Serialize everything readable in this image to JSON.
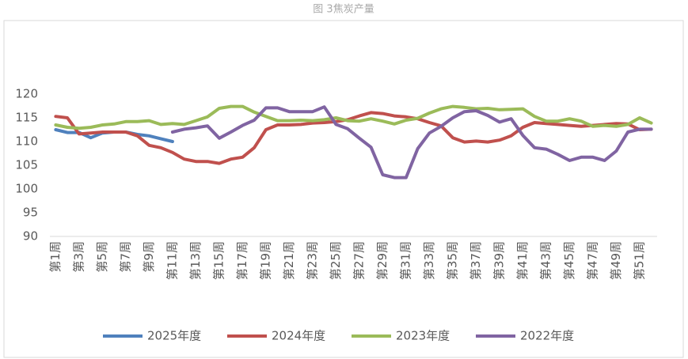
{
  "chart_data": {
    "type": "line",
    "title": "图 3焦炭产量",
    "categories": [
      "第1周",
      null,
      "第3周",
      null,
      "第5周",
      null,
      "第7周",
      null,
      "第9周",
      null,
      "第11周",
      null,
      "第13周",
      null,
      "第15周",
      null,
      "第17周",
      null,
      "第19周",
      null,
      "第21周",
      null,
      "第23周",
      null,
      "第25周",
      null,
      "第27周",
      null,
      "第29周",
      null,
      "第31周",
      null,
      "第33周",
      null,
      "第35周",
      null,
      "第37周",
      null,
      "第39周",
      null,
      "第41周",
      null,
      "第43周",
      null,
      "第45周",
      null,
      "第47周",
      null,
      "第49周",
      null,
      "第51周",
      null
    ],
    "series": [
      {
        "name": "2025年度",
        "color": "#4f81bd",
        "values": [
          112.5,
          111.9,
          111.9,
          110.8,
          111.8,
          112.0,
          112.0,
          111.5,
          111.2,
          110.6,
          110.0,
          null,
          null,
          null,
          null,
          null,
          null,
          null,
          null,
          null,
          null,
          null,
          null,
          null,
          null,
          null,
          null,
          null,
          null,
          null,
          null,
          null,
          null,
          null,
          null,
          null,
          null,
          null,
          null,
          null,
          null,
          null,
          null,
          null,
          null,
          null,
          null,
          null,
          null,
          null,
          null,
          null
        ]
      },
      {
        "name": "2024年度",
        "color": "#c0504d",
        "values": [
          115.3,
          115.0,
          111.6,
          111.8,
          112.0,
          112.0,
          112.0,
          111.2,
          109.2,
          108.7,
          107.7,
          106.3,
          105.8,
          105.8,
          105.4,
          106.3,
          106.7,
          108.7,
          112.5,
          113.5,
          113.5,
          113.6,
          113.9,
          114.0,
          114.2,
          114.6,
          115.4,
          116.1,
          115.9,
          115.4,
          115.2,
          114.8,
          114.0,
          113.3,
          110.8,
          109.9,
          110.1,
          109.9,
          110.3,
          111.2,
          113.0,
          114.0,
          113.8,
          113.6,
          113.4,
          113.2,
          113.4,
          113.6,
          113.8,
          113.7,
          112.5,
          112.6
        ]
      },
      {
        "name": "2023年度",
        "color": "#9bbb59",
        "values": [
          113.5,
          113.0,
          112.8,
          113.0,
          113.5,
          113.7,
          114.2,
          114.2,
          114.4,
          113.6,
          113.8,
          113.6,
          114.4,
          115.2,
          117.0,
          117.4,
          117.4,
          116.2,
          115.3,
          114.4,
          114.4,
          114.5,
          114.4,
          114.6,
          115.0,
          114.4,
          114.3,
          114.8,
          114.3,
          113.7,
          114.5,
          114.9,
          116.0,
          116.9,
          117.4,
          117.2,
          116.9,
          117.0,
          116.7,
          116.8,
          116.9,
          115.3,
          114.3,
          114.3,
          114.8,
          114.3,
          113.2,
          113.4,
          113.2,
          113.6,
          115.0,
          113.9
        ]
      },
      {
        "name": "2022年度",
        "color": "#8064a2",
        "values": [
          null,
          null,
          null,
          null,
          null,
          null,
          null,
          null,
          null,
          null,
          112.0,
          112.6,
          112.9,
          113.3,
          110.7,
          112.0,
          113.4,
          114.5,
          117.1,
          117.1,
          116.3,
          116.3,
          116.3,
          117.3,
          113.6,
          112.7,
          110.7,
          108.8,
          103.0,
          102.4,
          102.4,
          108.5,
          111.8,
          113.2,
          115.0,
          116.3,
          116.5,
          115.5,
          114.1,
          114.8,
          111.3,
          108.7,
          108.4,
          107.3,
          106.0,
          106.7,
          106.7,
          106.0,
          108.0,
          112.0,
          112.6,
          112.6
        ]
      }
    ],
    "ylim": [
      90,
      120
    ],
    "yticks": [
      90,
      95,
      100,
      105,
      110,
      115,
      120
    ],
    "grid": false,
    "legend": "bottom"
  }
}
